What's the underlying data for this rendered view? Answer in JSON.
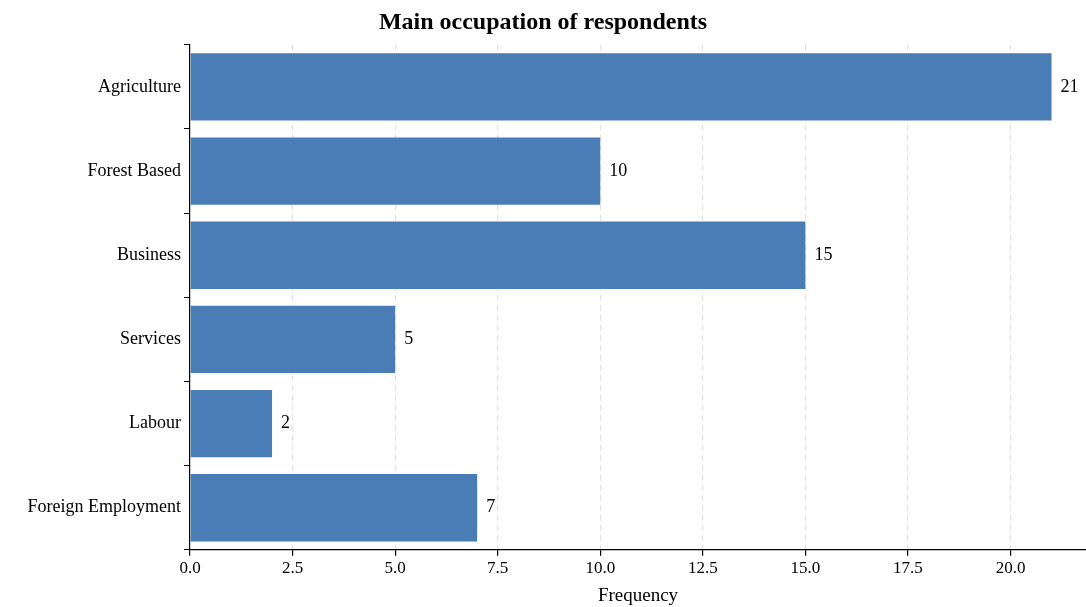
{
  "chart_data": {
    "type": "bar",
    "orientation": "horizontal",
    "title": "Main occupation of respondents",
    "xlabel": "Frequency",
    "categories": [
      "Agriculture",
      "Forest Based",
      "Business",
      "Services",
      "Labour",
      "Foreign Employment"
    ],
    "values": [
      21,
      10,
      15,
      5,
      2,
      7
    ],
    "color": "#4a7db6",
    "xlim": [
      0,
      21.84
    ],
    "xticks": [
      {
        "value": 0,
        "label": "0.0"
      },
      {
        "value": 2.5,
        "label": "2.5"
      },
      {
        "value": 5,
        "label": "5.0"
      },
      {
        "value": 7.5,
        "label": "7.5"
      },
      {
        "value": 10,
        "label": "10.0"
      },
      {
        "value": 12.5,
        "label": "12.5"
      },
      {
        "value": 15,
        "label": "15.0"
      },
      {
        "value": 17.5,
        "label": "17.5"
      },
      {
        "value": 20,
        "label": "20.0"
      }
    ],
    "grid": "x",
    "legend": false,
    "data_labels": true
  }
}
